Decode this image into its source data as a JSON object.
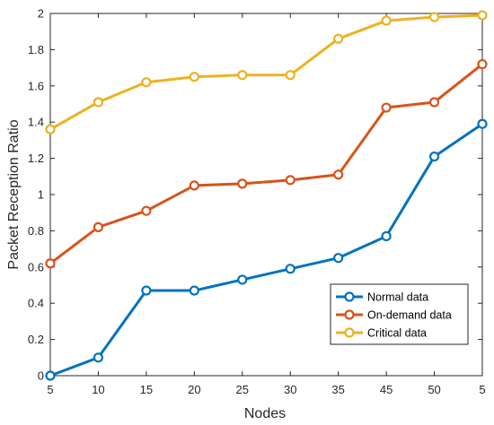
{
  "chart_data": {
    "type": "line",
    "x": [
      "5",
      "10",
      "15",
      "20",
      "25",
      "30",
      "35",
      "45",
      "50",
      "5"
    ],
    "xlabel": "Nodes",
    "ylabel": "Packet Reception Ratio",
    "ylim": [
      0,
      2
    ],
    "yticks": [
      "0",
      "0.2",
      "0.4",
      "0.6",
      "0.8",
      "1",
      "1.2",
      "1.4",
      "1.6",
      "1.8",
      "2"
    ],
    "grid": false,
    "legend_position": "bottom-right",
    "series": [
      {
        "name": "Normal data",
        "color": "#0072BD",
        "values": [
          0.0,
          0.1,
          0.47,
          0.47,
          0.53,
          0.59,
          0.65,
          0.77,
          1.21,
          1.39
        ]
      },
      {
        "name": "On-demand data",
        "color": "#D95319",
        "values": [
          0.62,
          0.82,
          0.91,
          1.05,
          1.06,
          1.08,
          1.11,
          1.48,
          1.51,
          1.72
        ]
      },
      {
        "name": "Critical data",
        "color": "#EDB120",
        "values": [
          1.36,
          1.51,
          1.62,
          1.65,
          1.66,
          1.66,
          1.86,
          1.96,
          1.98,
          1.99
        ]
      }
    ]
  }
}
